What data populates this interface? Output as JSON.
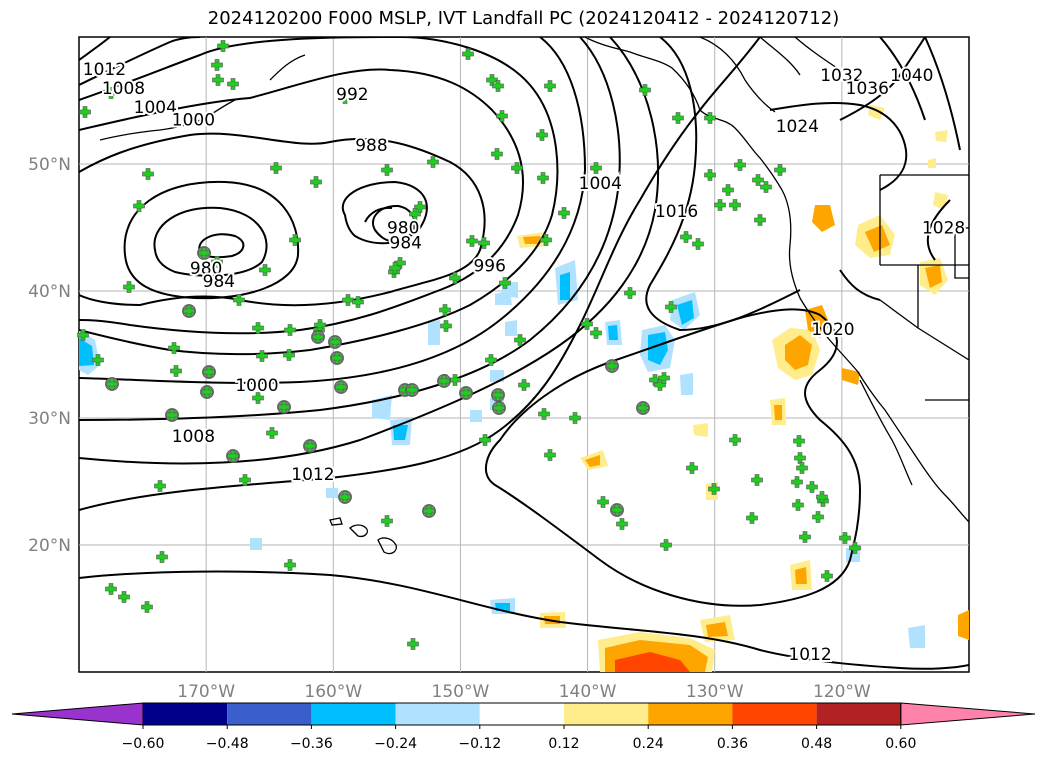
{
  "title": "2024120200 F000 MSLP, IVT Landfall PC (2024120412 - 2024120712)",
  "map": {
    "lon_range": [
      -180,
      -110
    ],
    "lat_range": [
      10,
      60
    ],
    "lat_ticks": [
      {
        "value": 20,
        "label": "20°N"
      },
      {
        "value": 30,
        "label": "30°N"
      },
      {
        "value": 40,
        "label": "40°N"
      },
      {
        "value": 50,
        "label": "50°N"
      }
    ],
    "lon_ticks": [
      {
        "value": -170,
        "label": "170°W"
      },
      {
        "value": -160,
        "label": "160°W"
      },
      {
        "value": -150,
        "label": "150°W"
      },
      {
        "value": -140,
        "label": "140°W"
      },
      {
        "value": -130,
        "label": "130°W"
      },
      {
        "value": -120,
        "label": "120°W"
      }
    ],
    "grid": true,
    "contour_labels": [
      {
        "text": "1012",
        "lon": -178,
        "lat": 57.5
      },
      {
        "text": "1008",
        "lon": -176.5,
        "lat": 56
      },
      {
        "text": "1004",
        "lon": -174,
        "lat": 54.5
      },
      {
        "text": "1000",
        "lon": -171,
        "lat": 53.5
      },
      {
        "text": "992",
        "lon": -158.5,
        "lat": 55.5
      },
      {
        "text": "988",
        "lon": -157,
        "lat": 51.5
      },
      {
        "text": "980",
        "lon": -154.5,
        "lat": 45
      },
      {
        "text": "984",
        "lon": -154.3,
        "lat": 43.8
      },
      {
        "text": "980",
        "lon": -170,
        "lat": 41.8
      },
      {
        "text": "984",
        "lon": -169,
        "lat": 40.8
      },
      {
        "text": "996",
        "lon": -147.7,
        "lat": 42
      },
      {
        "text": "1004",
        "lon": -139,
        "lat": 48.5
      },
      {
        "text": "1016",
        "lon": -133,
        "lat": 46.3
      },
      {
        "text": "1000",
        "lon": -166,
        "lat": 32.6
      },
      {
        "text": "1008",
        "lon": -171,
        "lat": 28.6
      },
      {
        "text": "1012",
        "lon": -161.6,
        "lat": 25.6
      },
      {
        "text": "1012",
        "lon": -122.5,
        "lat": 11.4
      },
      {
        "text": "1020",
        "lon": -120.7,
        "lat": 37
      },
      {
        "text": "1024",
        "lon": -123.5,
        "lat": 53
      },
      {
        "text": "1028",
        "lon": -112,
        "lat": 45
      },
      {
        "text": "1032",
        "lon": -120,
        "lat": 57
      },
      {
        "text": "1036",
        "lon": -118,
        "lat": 56
      },
      {
        "text": "1040",
        "lon": -114.5,
        "lat": 57
      }
    ]
  },
  "colorbar": {
    "ticks": [
      "−0.60",
      "−0.48",
      "−0.36",
      "−0.24",
      "−0.12",
      "0.12",
      "0.24",
      "0.36",
      "0.48",
      "0.60"
    ],
    "colors": [
      "#9a32cd",
      "#00008b",
      "#3a5fcd",
      "#00bfff",
      "#b0e2ff",
      "#ffffff",
      "#ffec8b",
      "#ffa500",
      "#ff4500",
      "#b22222",
      "#ff82ab"
    ]
  }
}
